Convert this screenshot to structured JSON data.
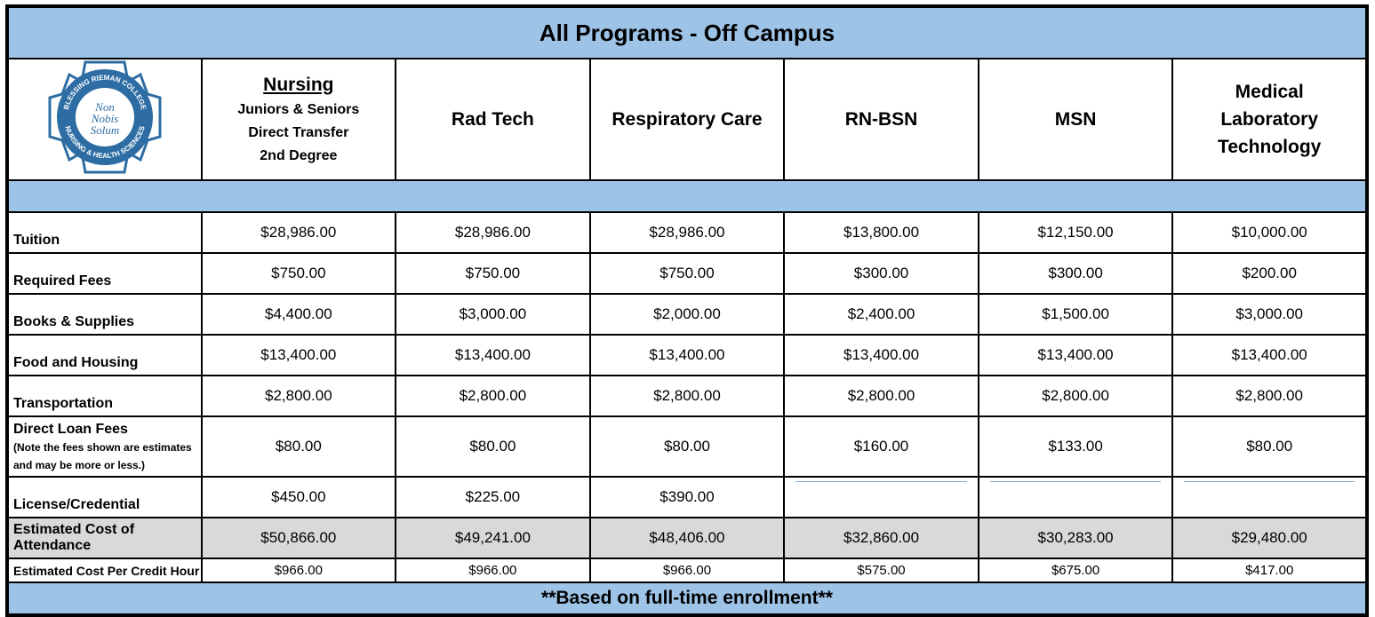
{
  "title": "All Programs - Off Campus",
  "logo": {
    "motto": [
      "Non",
      "Nobis",
      "Solum"
    ],
    "ring_top": "BLESSING RIEMAN COLLEGE",
    "ring_bottom": "NURSING & HEALTH SCIENCES"
  },
  "columns": [
    {
      "name": "Nursing",
      "details": [
        "Juniors & Seniors",
        "Direct Transfer",
        "2nd Degree"
      ]
    },
    {
      "name": "Rad Tech"
    },
    {
      "name": "Respiratory Care"
    },
    {
      "name": "RN-BSN"
    },
    {
      "name": "MSN"
    },
    {
      "name": "Medical Laboratory Technology"
    }
  ],
  "rows": [
    {
      "label": "Tuition",
      "values": [
        "$28,986.00",
        "$28,986.00",
        "$28,986.00",
        "$13,800.00",
        "$12,150.00",
        "$10,000.00"
      ]
    },
    {
      "label": "Required Fees",
      "values": [
        "$750.00",
        "$750.00",
        "$750.00",
        "$300.00",
        "$300.00",
        "$200.00"
      ]
    },
    {
      "label": "Books & Supplies",
      "values": [
        "$4,400.00",
        "$3,000.00",
        "$2,000.00",
        "$2,400.00",
        "$1,500.00",
        "$3,000.00"
      ]
    },
    {
      "label": "Food and Housing",
      "values": [
        "$13,400.00",
        "$13,400.00",
        "$13,400.00",
        "$13,400.00",
        "$13,400.00",
        "$13,400.00"
      ]
    },
    {
      "label": "Transportation",
      "values": [
        "$2,800.00",
        "$2,800.00",
        "$2,800.00",
        "$2,800.00",
        "$2,800.00",
        "$2,800.00"
      ]
    },
    {
      "label": "Direct Loan Fees",
      "note": "(Note the fees shown are estimates and may be more or less.)",
      "values": [
        "$80.00",
        "$80.00",
        "$80.00",
        "$160.00",
        "$133.00",
        "$80.00"
      ]
    },
    {
      "label": "License/Credential",
      "values": [
        "$450.00",
        "$225.00",
        "$390.00",
        null,
        null,
        null
      ]
    },
    {
      "label": "Estimated Cost of Attendance",
      "values": [
        "$50,866.00",
        "$49,241.00",
        "$48,406.00",
        "$32,860.00",
        "$30,283.00",
        "$29,480.00"
      ]
    },
    {
      "label": "Estimated Cost Per Credit Hour",
      "values": [
        "$966.00",
        "$966.00",
        "$966.00",
        "$575.00",
        "$675.00",
        "$417.00"
      ]
    }
  ],
  "footer": "**Based on full-time enrollment**"
}
